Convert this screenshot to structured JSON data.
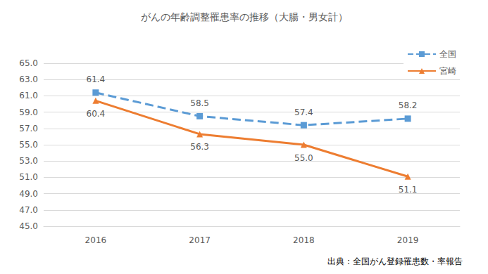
{
  "chart_data": {
    "type": "line",
    "title": "がんの年齢調整罹患率の推移（大腸・男女計）",
    "source": "出典：全国がん登録罹患数・率報告",
    "categories": [
      "2016",
      "2017",
      "2018",
      "2019"
    ],
    "series": [
      {
        "name": "全国",
        "color": "#5B9BD5",
        "marker": "square",
        "line_style": "dashed",
        "values": [
          61.4,
          58.5,
          57.4,
          58.2
        ],
        "value_labels": [
          "61.4",
          "58.5",
          "57.4",
          "58.2"
        ]
      },
      {
        "name": "宮崎",
        "color": "#ED7D31",
        "marker": "triangle",
        "line_style": "solid",
        "values": [
          60.4,
          56.3,
          55.0,
          51.1
        ],
        "value_labels": [
          "60.4",
          "56.3",
          "55.0",
          "51.1"
        ]
      }
    ],
    "ylim": [
      45,
      65
    ],
    "yticks": [
      {
        "value": 45,
        "label": "45.0"
      },
      {
        "value": 47,
        "label": "47.0"
      },
      {
        "value": 49,
        "label": "49.0"
      },
      {
        "value": 51,
        "label": "51.0"
      },
      {
        "value": 53,
        "label": "53.0"
      },
      {
        "value": 55,
        "label": "55.0"
      },
      {
        "value": 57,
        "label": "57.0"
      },
      {
        "value": 59,
        "label": "59.0"
      },
      {
        "value": 61,
        "label": "61.0"
      },
      {
        "value": 63,
        "label": "63.0"
      },
      {
        "value": 65,
        "label": "65.0"
      }
    ],
    "grid": true,
    "legend": "top-right",
    "data_labels": true
  }
}
